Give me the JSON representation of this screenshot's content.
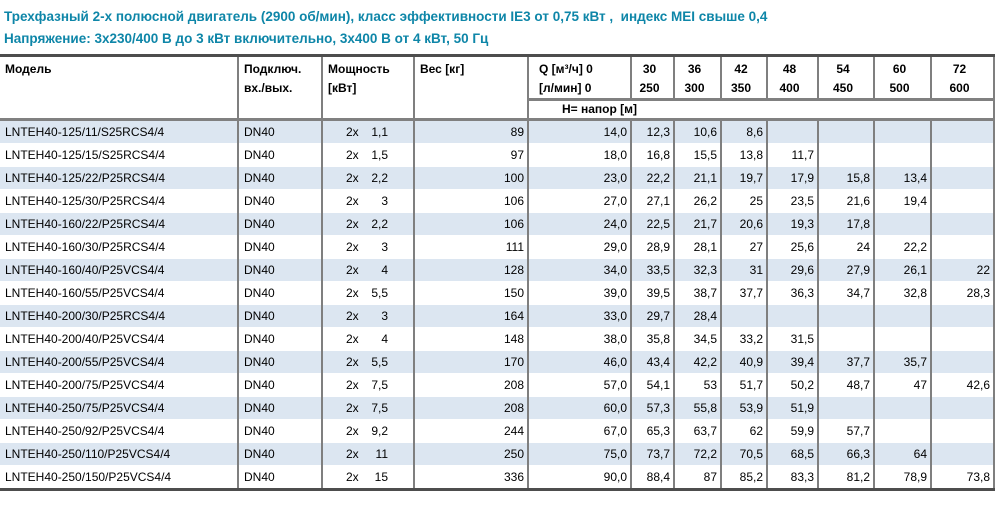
{
  "colors": {
    "accent": "#0e86a8",
    "stripe": "#dce6f1",
    "grid": "#7f7f7f",
    "heavy": "#4d4d4d"
  },
  "header": {
    "line1": "Трехфазный 2-х полюсной двигатель (2900 об/мин), класс эффективности IE3 от 0,75 кВт ,  индекс MEI свыше 0,4",
    "line2": "Напряжение: 3х230/400 В до 3 кВт включительно, 3х400 В от 4 кВт, 50 Гц"
  },
  "table": {
    "headers": {
      "model": "Модель",
      "connection1": "Подключ.",
      "connection2": "вх./вых.",
      "power1": "Мощность",
      "power2": "[кВт]",
      "weight": "Вес [кг]",
      "q_m3h": "Q [м³/ч] 0",
      "q_lmin": "[л/мин] 0",
      "flows": [
        {
          "q": "30",
          "lpm": "250"
        },
        {
          "q": "36",
          "lpm": "300"
        },
        {
          "q": "42",
          "lpm": "350"
        },
        {
          "q": "48",
          "lpm": "400"
        },
        {
          "q": "54",
          "lpm": "450"
        },
        {
          "q": "60",
          "lpm": "500"
        },
        {
          "q": "72",
          "lpm": "600"
        }
      ],
      "head_row_label": "Н= напор [м]"
    },
    "rows": [
      {
        "model": "LNTEH40-125/11/S25RCS4/4",
        "connection": "DN40",
        "power_prefix": "2x",
        "power": "1,1",
        "weight": "89",
        "head_m": [
          "14,0",
          "12,3",
          "10,6",
          "8,6",
          "",
          "",
          "",
          ""
        ]
      },
      {
        "model": "LNTEH40-125/15/S25RCS4/4",
        "connection": "DN40",
        "power_prefix": "2x",
        "power": "1,5",
        "weight": "97",
        "head_m": [
          "18,0",
          "16,8",
          "15,5",
          "13,8",
          "11,7",
          "",
          "",
          ""
        ]
      },
      {
        "model": "LNTEH40-125/22/P25RCS4/4",
        "connection": "DN40",
        "power_prefix": "2x",
        "power": "2,2",
        "weight": "100",
        "head_m": [
          "23,0",
          "22,2",
          "21,1",
          "19,7",
          "17,9",
          "15,8",
          "13,4",
          ""
        ]
      },
      {
        "model": "LNTEH40-125/30/P25RCS4/4",
        "connection": "DN40",
        "power_prefix": "2x",
        "power": "3",
        "weight": "106",
        "head_m": [
          "27,0",
          "27,1",
          "26,2",
          "25",
          "23,5",
          "21,6",
          "19,4",
          ""
        ]
      },
      {
        "model": "LNTEH40-160/22/P25RCS4/4",
        "connection": "DN40",
        "power_prefix": "2x",
        "power": "2,2",
        "weight": "106",
        "head_m": [
          "24,0",
          "22,5",
          "21,7",
          "20,6",
          "19,3",
          "17,8",
          "",
          ""
        ]
      },
      {
        "model": "LNTEH40-160/30/P25RCS4/4",
        "connection": "DN40",
        "power_prefix": "2x",
        "power": "3",
        "weight": "111",
        "head_m": [
          "29,0",
          "28,9",
          "28,1",
          "27",
          "25,6",
          "24",
          "22,2",
          ""
        ]
      },
      {
        "model": "LNTEH40-160/40/P25VCS4/4",
        "connection": "DN40",
        "power_prefix": "2x",
        "power": "4",
        "weight": "128",
        "head_m": [
          "34,0",
          "33,5",
          "32,3",
          "31",
          "29,6",
          "27,9",
          "26,1",
          "22"
        ]
      },
      {
        "model": "LNTEH40-160/55/P25VCS4/4",
        "connection": "DN40",
        "power_prefix": "2x",
        "power": "5,5",
        "weight": "150",
        "head_m": [
          "39,0",
          "39,5",
          "38,7",
          "37,7",
          "36,3",
          "34,7",
          "32,8",
          "28,3"
        ]
      },
      {
        "model": "LNTEH40-200/30/P25RCS4/4",
        "connection": "DN40",
        "power_prefix": "2x",
        "power": "3",
        "weight": "164",
        "head_m": [
          "33,0",
          "29,7",
          "28,4",
          "",
          "",
          "",
          "",
          ""
        ]
      },
      {
        "model": "LNTEH40-200/40/P25VCS4/4",
        "connection": "DN40",
        "power_prefix": "2x",
        "power": "4",
        "weight": "148",
        "head_m": [
          "38,0",
          "35,8",
          "34,5",
          "33,2",
          "31,5",
          "",
          "",
          ""
        ]
      },
      {
        "model": "LNTEH40-200/55/P25VCS4/4",
        "connection": "DN40",
        "power_prefix": "2x",
        "power": "5,5",
        "weight": "170",
        "head_m": [
          "46,0",
          "43,4",
          "42,2",
          "40,9",
          "39,4",
          "37,7",
          "35,7",
          ""
        ]
      },
      {
        "model": "LNTEH40-200/75/P25VCS4/4",
        "connection": "DN40",
        "power_prefix": "2x",
        "power": "7,5",
        "weight": "208",
        "head_m": [
          "57,0",
          "54,1",
          "53",
          "51,7",
          "50,2",
          "48,7",
          "47",
          "42,6"
        ]
      },
      {
        "model": "LNTEH40-250/75/P25VCS4/4",
        "connection": "DN40",
        "power_prefix": "2x",
        "power": "7,5",
        "weight": "208",
        "head_m": [
          "60,0",
          "57,3",
          "55,8",
          "53,9",
          "51,9",
          "",
          "",
          ""
        ]
      },
      {
        "model": "LNTEH40-250/92/P25VCS4/4",
        "connection": "DN40",
        "power_prefix": "2x",
        "power": "9,2",
        "weight": "244",
        "head_m": [
          "67,0",
          "65,3",
          "63,7",
          "62",
          "59,9",
          "57,7",
          "",
          ""
        ]
      },
      {
        "model": "LNTEH40-250/110/P25VCS4/4",
        "connection": "DN40",
        "power_prefix": "2x",
        "power": "11",
        "weight": "250",
        "head_m": [
          "75,0",
          "73,7",
          "72,2",
          "70,5",
          "68,5",
          "66,3",
          "64",
          ""
        ]
      },
      {
        "model": "LNTEH40-250/150/P25VCS4/4",
        "connection": "DN40",
        "power_prefix": "2x",
        "power": "15",
        "weight": "336",
        "head_m": [
          "90,0",
          "88,4",
          "87",
          "85,2",
          "83,3",
          "81,2",
          "78,9",
          "73,8"
        ]
      }
    ]
  }
}
